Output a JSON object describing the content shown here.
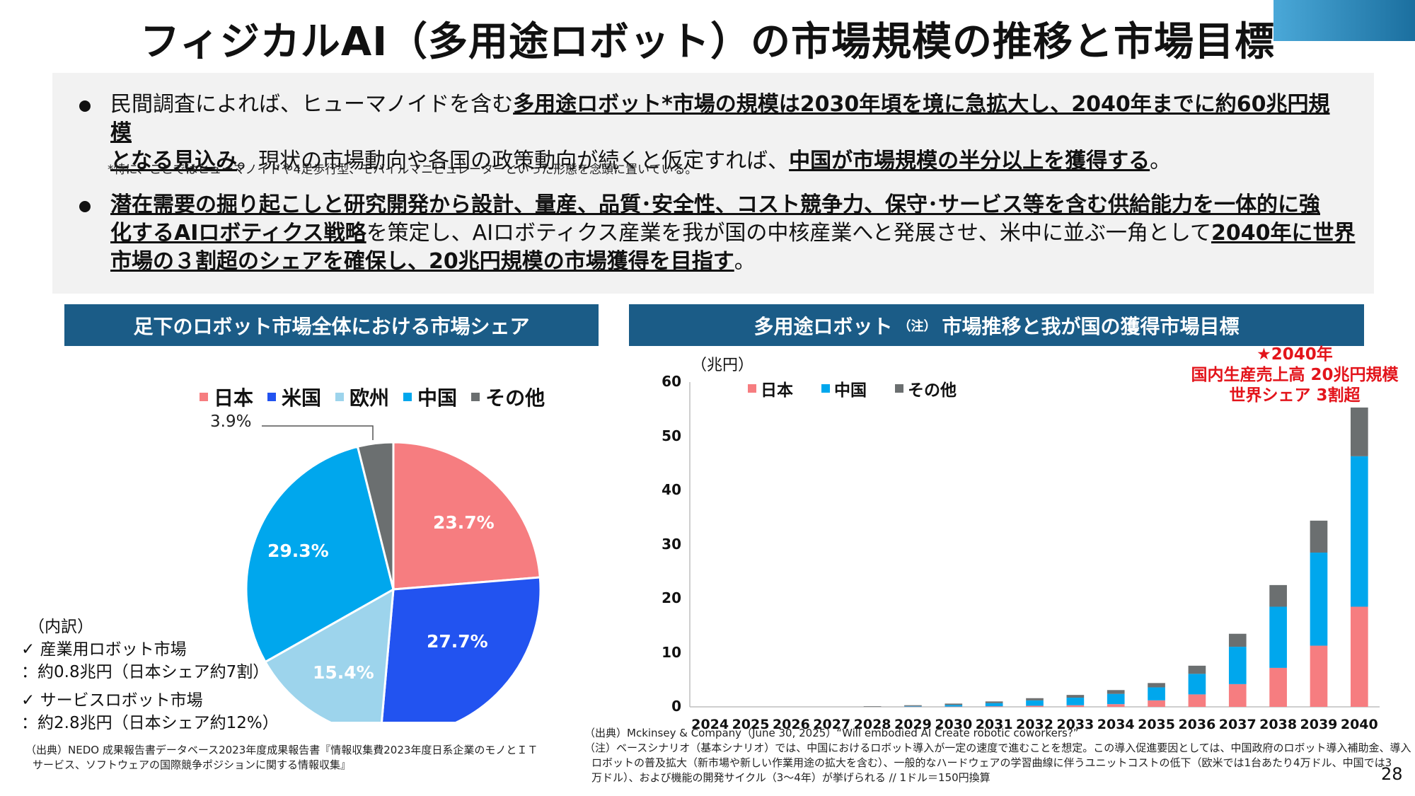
{
  "title": "フィジカルAI（多用途ロボット）の市場規模の推移と市場目標",
  "summary": {
    "bullet1_a": "民間調査によれば、ヒューマノイドを含む",
    "bullet1_b": "多用途ロボット*市場の規模は2030年頃を境に急拡大し、2040年までに約60兆円規模",
    "bullet1_c": "となる見込み",
    "bullet1_d": "。現状の市場動向や各国の政策動向が続くと仮定すれば、",
    "bullet1_e": "中国が市場規模の半分以上を獲得する",
    "bullet1_f": "。",
    "note": "*特に、ここではヒューマノイドや4足歩行型、モバイルマニピュレーターといった形態を念頭に置いている。",
    "bullet2_a": "潜在需要の掘り起こしと研究開発から設計、量産、品質･安全性、コスト競争力、保守･サービス等を含む供給能力を一体的に強",
    "bullet2_b": "化するAIロボティクス戦略",
    "bullet2_c": "を策定し、AIロボティクス産業を我が国の中核産業へと発展させ、米中に並ぶ一角として",
    "bullet2_d": "2040年に世界",
    "bullet2_e": "市場の３割超のシェアを確保し、20兆円規模の市場獲得を目指す",
    "bullet2_f": "。"
  },
  "left_panel": {
    "header": "足下のロボット市場全体における市場シェア",
    "breakdown_title": "（内訳）",
    "breakdown_1": "✓ 産業用ロボット市場",
    "breakdown_2": "：約0.8兆円（日本シェア約7割）",
    "breakdown_3": "✓ サービスロボット市場",
    "breakdown_4": "：約2.8兆円（日本シェア約12%）",
    "source_1": "（出典）NEDO 成果報告書データベース2023年度成果報告書『情報収集費2023年度日系企業のモノとＩＴ",
    "source_2": "サービス、ソフトウェアの国際競争ポジションに関する情報収集』"
  },
  "right_panel": {
    "header_a": "多用途ロボット",
    "header_note": "（注）",
    "header_b": "市場推移と我が国の獲得市場目標",
    "unit": "（兆円）",
    "callout_1": "★2040年",
    "callout_2": "国内生産売上高 20兆円規模",
    "callout_3": "世界シェア 3割超",
    "source_1": "（出典）Mckinsey & Company（June 30, 2025）“Will embodied AI Create robotic coworkers?”",
    "source_2": "（注）ベースシナリオ（基本シナリオ）では、中国におけるロボット導入が一定の速度で進むことを想定。この導入促進要因としては、中国政府のロボット導入補助金、導入",
    "source_3": "ロボットの普及拡大（新市場や新しい作業用途の拡大を含む）、一般的なハードウェアの学習曲線に伴うユニットコストの低下（欧米では1台あたり4万ドル、中国では3",
    "source_4": "万ドル）、および機能の開発サイクル（3～4年）が挙げられる // 1ドル＝150円換算"
  },
  "page_number": "28",
  "colors": {
    "japan": "#f67d80",
    "usa": "#2253f0",
    "europe": "#9dd4ec",
    "china": "#00a7ed",
    "other": "#6b6f70",
    "header_bg": "#1b5c87",
    "callout": "#e3141b"
  },
  "chart_data": [
    {
      "type": "pie",
      "legend": [
        "日本",
        "米国",
        "欧州",
        "中国",
        "その他"
      ],
      "labels": [
        "日本",
        "米国",
        "欧州",
        "中国",
        "その他"
      ],
      "values": [
        23.7,
        27.7,
        15.4,
        29.3,
        3.9
      ],
      "value_labels": [
        "23.7%",
        "27.7%",
        "15.4%",
        "29.3%",
        "3.9%"
      ],
      "legend_position": "top"
    },
    {
      "type": "bar",
      "stacked": true,
      "categories": [
        "2024",
        "2025",
        "2026",
        "2027",
        "2028",
        "2029",
        "2030",
        "2031",
        "2032",
        "2033",
        "2034",
        "2035",
        "2036",
        "2037",
        "2038",
        "2039",
        "2040"
      ],
      "series": [
        {
          "name": "日本",
          "values": [
            0,
            0,
            0,
            0,
            0,
            0.05,
            0.05,
            0.1,
            0.2,
            0.3,
            0.5,
            1.2,
            2.3,
            4.2,
            7.2,
            11.3,
            18.5
          ]
        },
        {
          "name": "中国",
          "values": [
            0,
            0,
            0,
            0,
            0,
            0.1,
            0.3,
            0.6,
            1.0,
            1.4,
            1.9,
            2.4,
            3.8,
            6.9,
            11.3,
            17.2,
            27.8
          ]
        },
        {
          "name": "その他",
          "values": [
            0,
            0,
            0,
            0,
            0.1,
            0.15,
            0.25,
            0.3,
            0.4,
            0.5,
            0.7,
            0.8,
            1.5,
            2.4,
            4.0,
            5.9,
            9.0
          ]
        }
      ],
      "ylabel": "（兆円）",
      "ylim": [
        0,
        60
      ],
      "yticks": [
        0,
        10,
        20,
        30,
        40,
        50,
        60
      ],
      "legend_position": "top-left",
      "grid": false
    }
  ]
}
